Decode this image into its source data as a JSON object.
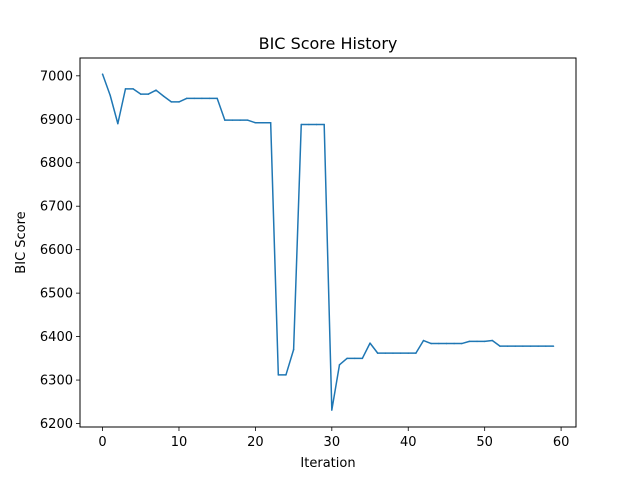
{
  "chart_data": {
    "type": "line",
    "title": "BIC Score History",
    "xlabel": "Iteration",
    "ylabel": "BIC Score",
    "xlim": [
      -2.95,
      61.95
    ],
    "ylim": [
      6192,
      7041
    ],
    "xticks": [
      0,
      10,
      20,
      30,
      40,
      50,
      60
    ],
    "yticks": [
      6200,
      6300,
      6400,
      6500,
      6600,
      6700,
      6800,
      6900,
      7000
    ],
    "grid": false,
    "line_color": "#1f77b4",
    "series": [
      {
        "x": [
          0,
          1,
          2,
          3,
          4,
          5,
          6,
          7,
          8,
          9,
          10,
          11,
          12,
          13,
          14,
          15,
          16,
          17,
          18,
          19,
          20,
          21,
          22,
          23,
          24,
          25,
          26,
          27,
          28,
          29,
          30,
          31,
          32,
          33,
          34,
          35,
          36,
          37,
          38,
          39,
          40,
          41,
          42,
          43,
          44,
          45,
          46,
          47,
          48,
          49,
          50,
          51,
          52,
          53,
          54,
          55,
          56,
          57,
          58,
          59
        ],
        "y": [
          7004,
          6955,
          6890,
          6970,
          6970,
          6958,
          6958,
          6967,
          6953,
          6940,
          6940,
          6948,
          6948,
          6948,
          6948,
          6948,
          6898,
          6898,
          6898,
          6898,
          6892,
          6892,
          6892,
          6312,
          6312,
          6370,
          6888,
          6888,
          6888,
          6888,
          6231,
          6335,
          6350,
          6350,
          6350,
          6385,
          6362,
          6362,
          6362,
          6362,
          6362,
          6362,
          6391,
          6384,
          6384,
          6384,
          6384,
          6384,
          6389,
          6389,
          6389,
          6391,
          6378,
          6378,
          6378,
          6378,
          6378,
          6378,
          6378,
          6378
        ]
      }
    ]
  }
}
